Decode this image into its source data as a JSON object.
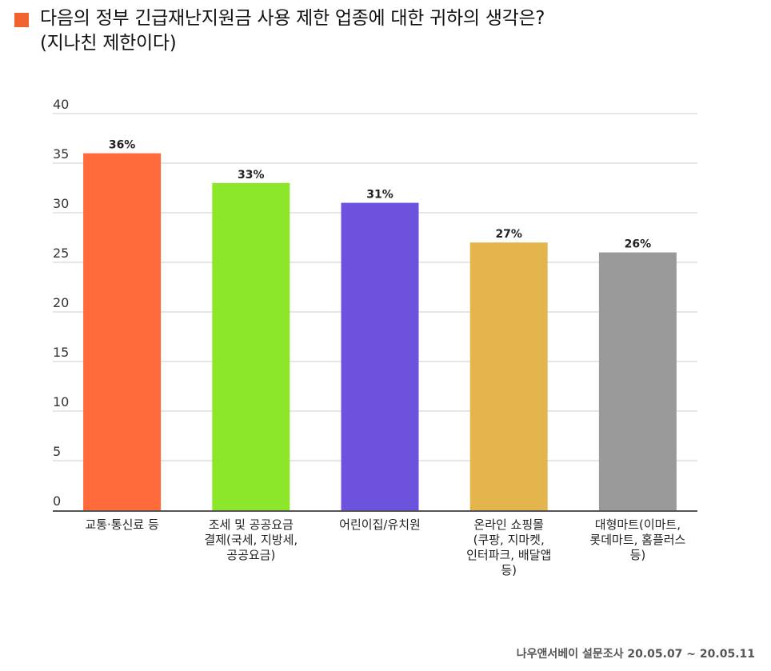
{
  "title": {
    "line1": "다음의 정부 긴급재난지원금 사용 제한 업종에 대한 귀하의 생각은?",
    "line2": "(지나친 제한이다)",
    "marker_color": "#f0622e"
  },
  "source": "나우앤서베이 설문조사 20.05.07 ~ 20.05.11",
  "chart_data": {
    "type": "bar",
    "title": "다음의 정부 긴급재난지원금 사용 제한 업종에 대한 귀하의 생각은? (지나친 제한이다)",
    "categories": [
      [
        "교통·통신료 등"
      ],
      [
        "조세 및 공공요금",
        "결제(국세, 지방세,",
        "공공요금)"
      ],
      [
        "어린이집/유치원"
      ],
      [
        "온라인 쇼핑몰",
        "(쿠팡, 지마켓,",
        "인터파크, 배달앱",
        "등)"
      ],
      [
        "대형마트(이마트,",
        "롯데마트, 홈플러스",
        "등)"
      ]
    ],
    "values": [
      36,
      33,
      31,
      27,
      26
    ],
    "data_labels": [
      "36%",
      "33%",
      "31%",
      "27%",
      "26%"
    ],
    "colors": [
      "#ff6a3a",
      "#8ce62a",
      "#6c52dc",
      "#e4b54c",
      "#9a9a9a"
    ],
    "ylim": [
      0,
      40
    ],
    "yticks": [
      0,
      5,
      10,
      15,
      20,
      25,
      30,
      35,
      40
    ],
    "grid": true,
    "xlabel": "",
    "ylabel": ""
  }
}
